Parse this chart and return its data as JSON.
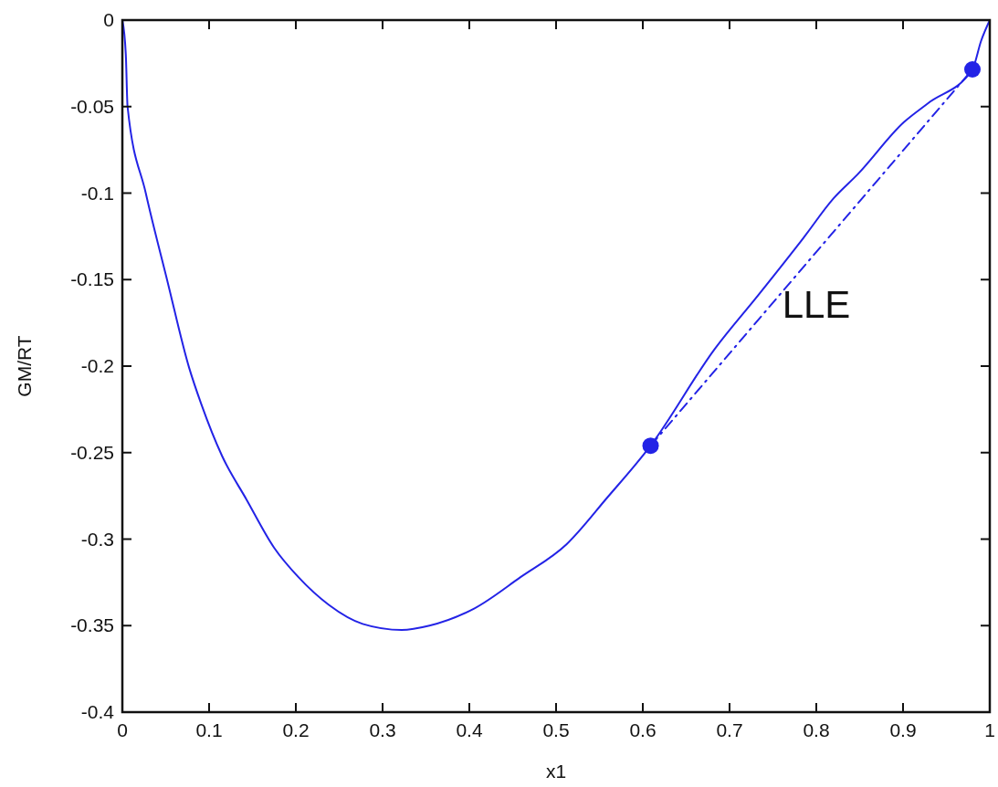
{
  "chart_data": {
    "type": "line",
    "xlabel": "x1",
    "ylabel": "GM/RT",
    "xlim": [
      0,
      1
    ],
    "ylim": [
      -0.4,
      0
    ],
    "xticks": [
      0,
      0.1,
      0.2,
      0.3,
      0.4,
      0.5,
      0.6,
      0.7,
      0.8,
      0.9,
      1
    ],
    "yticks": [
      -0.4,
      -0.35,
      -0.3,
      -0.25,
      -0.2,
      -0.15,
      -0.1,
      -0.05,
      0
    ],
    "grid": false,
    "series": [
      {
        "color": "#2323e6",
        "line_style": "solid",
        "marker": "none",
        "x": [
          0,
          0.004,
          0.006,
          0.027,
          0.052,
          0.077,
          0.091,
          0.115,
          0.143,
          0.175,
          0.203,
          0.238,
          0.277,
          0.322,
          0.354,
          0.406,
          0.459,
          0.512,
          0.559,
          0.609,
          0.683,
          0.733,
          0.785,
          0.82,
          0.848,
          0.901,
          0.929,
          0.98,
          0.99,
          1
        ],
        "values": [
          0,
          -0.02,
          -0.05,
          -0.1,
          -0.151,
          -0.201,
          -0.222,
          -0.252,
          -0.277,
          -0.305,
          -0.322,
          -0.338,
          -0.349,
          -0.3525,
          -0.35,
          -0.34,
          -0.322,
          -0.303,
          -0.276,
          -0.246,
          -0.19,
          -0.159,
          -0.126,
          -0.103,
          -0.089,
          -0.059,
          -0.048,
          -0.0285,
          -0.012,
          0
        ]
      },
      {
        "color": "#2323e6",
        "line_style": "dashed",
        "marker": "none",
        "x": [
          0.609,
          0.98
        ],
        "values": [
          -0.246,
          -0.0285
        ]
      },
      {
        "type": "scatter",
        "color": "#2323e6",
        "marker": "circle",
        "x": [
          0.609,
          0.98
        ],
        "values": [
          -0.246,
          -0.0285
        ]
      }
    ],
    "annotations": [
      "LLE"
    ]
  }
}
